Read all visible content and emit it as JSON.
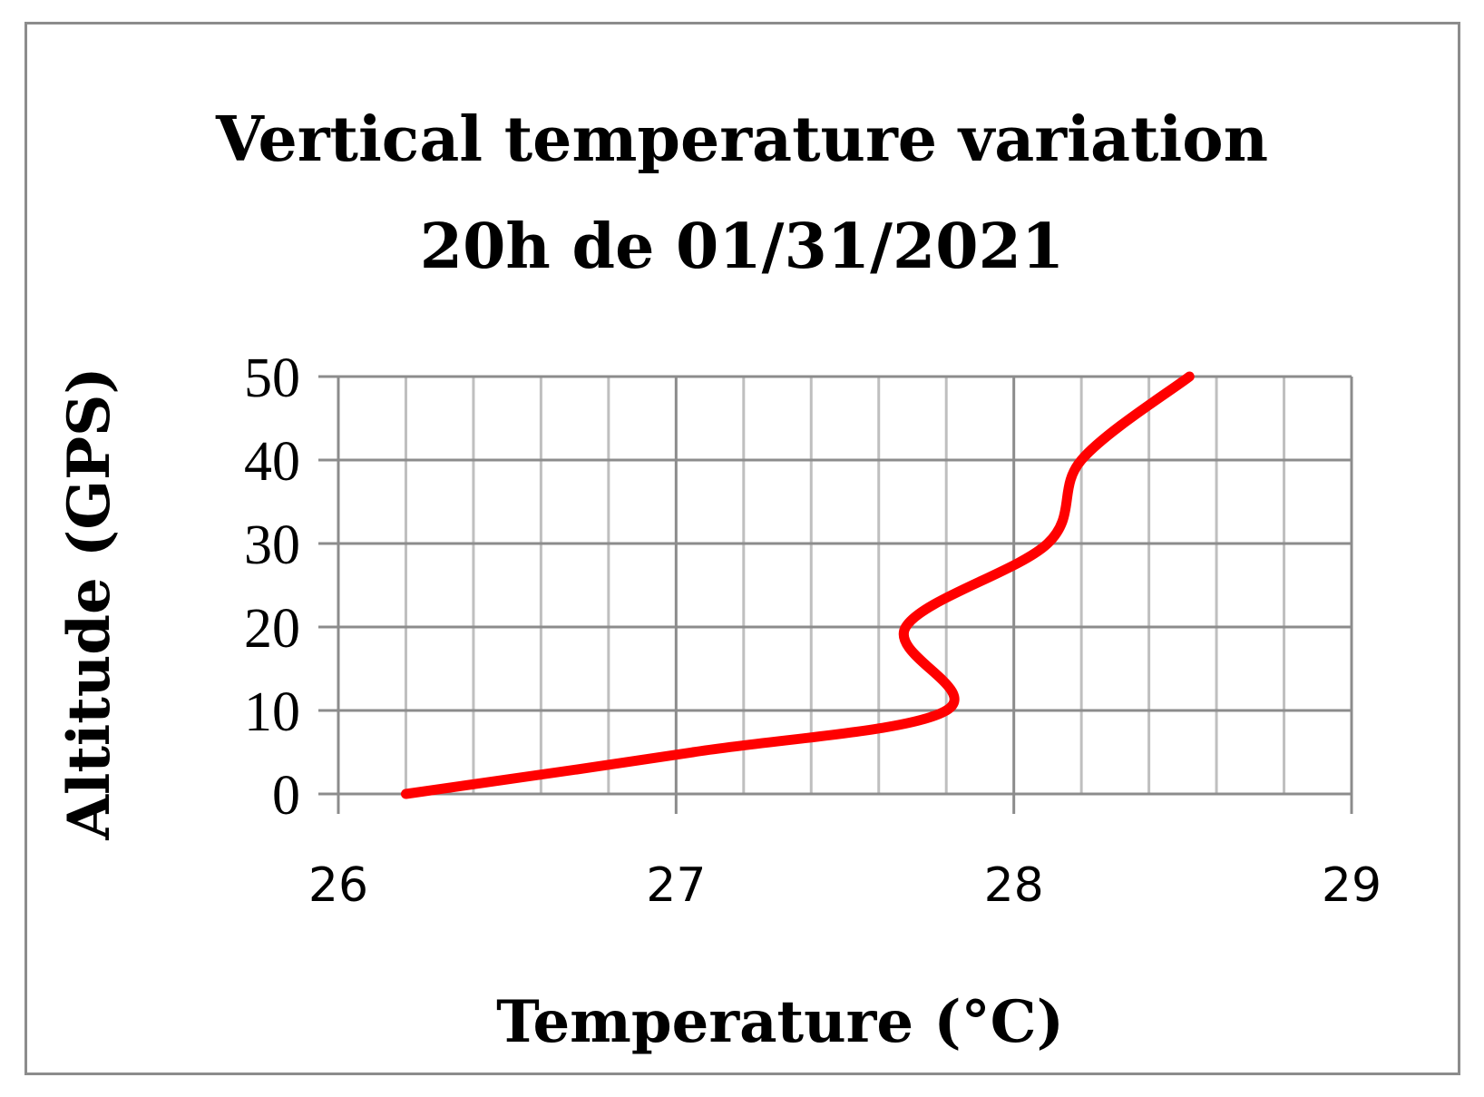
{
  "chart_data": {
    "type": "line",
    "title": [
      "Vertical temperature variation",
      "20h de 01/31/2021"
    ],
    "xlabel": "Temperature (°C)",
    "ylabel": "Altitude (GPS)",
    "xlim": [
      26,
      29
    ],
    "ylim": [
      0,
      50
    ],
    "x_ticks": [
      "26",
      "27",
      "28",
      "29"
    ],
    "y_ticks": [
      "0",
      "10",
      "20",
      "30",
      "40",
      "50"
    ],
    "grid": true,
    "x_minor_step": 0.2,
    "series": [
      {
        "color": "#ff0000",
        "points": [
          {
            "x": 26.2,
            "y": 0
          },
          {
            "x": 27.05,
            "y": 5
          },
          {
            "x": 27.8,
            "y": 10
          },
          {
            "x": 27.68,
            "y": 20
          },
          {
            "x": 28.1,
            "y": 30
          },
          {
            "x": 28.2,
            "y": 40
          },
          {
            "x": 28.52,
            "y": 50
          }
        ]
      }
    ]
  }
}
